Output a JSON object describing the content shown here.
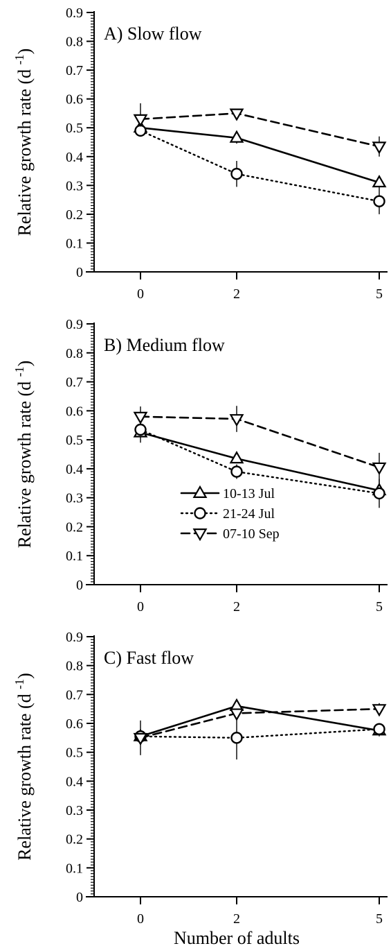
{
  "chart_data": [
    {
      "type": "line",
      "panel_label": "A) Slow flow",
      "title": "A) Slow flow",
      "ylabel": "Relative growth rate (d -1)",
      "xlabel": "",
      "x": [
        0,
        2,
        5
      ],
      "x_tick_labels": [
        "0",
        "2",
        "5"
      ],
      "ylim": [
        0,
        0.9
      ],
      "y_tick_labels": [
        "0",
        "0.1",
        "0.2",
        "0.3",
        "0.4",
        "0.5",
        "0.6",
        "0.7",
        "0.8",
        "0.9"
      ],
      "grid": false,
      "series": [
        {
          "name": "10-13 Jul",
          "marker": "triangle-up",
          "line": "solid",
          "values": [
            0.5,
            0.465,
            0.31
          ],
          "errors": [
            0.02,
            0.02,
            0.02
          ]
        },
        {
          "name": "21-24 Jul",
          "marker": "circle",
          "line": "dotted",
          "values": [
            0.49,
            0.34,
            0.245
          ],
          "errors": [
            0.02,
            0.045,
            0.045
          ]
        },
        {
          "name": "07-10 Sep",
          "marker": "triangle-down",
          "line": "dashed",
          "values": [
            0.53,
            0.55,
            0.435
          ],
          "errors": [
            0.055,
            0.015,
            0.035
          ]
        }
      ]
    },
    {
      "type": "line",
      "panel_label": "B) Medium flow",
      "title": "B) Medium flow",
      "ylabel": "Relative growth rate (d -1)",
      "xlabel": "",
      "x": [
        0,
        2,
        5
      ],
      "x_tick_labels": [
        "0",
        "2",
        "5"
      ],
      "ylim": [
        0,
        0.9
      ],
      "y_tick_labels": [
        "0",
        "0.1",
        "0.2",
        "0.3",
        "0.4",
        "0.5",
        "0.6",
        "0.7",
        "0.8",
        "0.9"
      ],
      "grid": false,
      "legend": {
        "placement": "center",
        "entries": [
          {
            "label": "10-13 Jul",
            "marker": "triangle-up",
            "line": "solid"
          },
          {
            "label": "21-24 Jul",
            "marker": "circle",
            "line": "dotted"
          },
          {
            "label": "07-10 Sep",
            "marker": "triangle-down",
            "line": "dashed"
          }
        ]
      },
      "series": [
        {
          "name": "10-13 Jul",
          "marker": "triangle-up",
          "line": "solid",
          "values": [
            0.525,
            0.435,
            0.325
          ],
          "errors": [
            0.035,
            0.015,
            0.03
          ]
        },
        {
          "name": "21-24 Jul",
          "marker": "circle",
          "line": "dotted",
          "values": [
            0.535,
            0.39,
            0.315
          ],
          "errors": [
            0.02,
            0.025,
            0.05
          ]
        },
        {
          "name": "07-10 Sep",
          "marker": "triangle-down",
          "line": "dashed",
          "values": [
            0.58,
            0.572,
            0.405
          ],
          "errors": [
            0.035,
            0.045,
            0.05
          ]
        }
      ]
    },
    {
      "type": "line",
      "panel_label": "C) Fast flow",
      "title": "C) Fast flow",
      "ylabel": "Relative growth rate (d -1)",
      "xlabel": "Number of adults",
      "x": [
        0,
        2,
        5
      ],
      "x_tick_labels": [
        "0",
        "2",
        "5"
      ],
      "ylim": [
        0,
        0.9
      ],
      "y_tick_labels": [
        "0",
        "0.1",
        "0.2",
        "0.3",
        "0.4",
        "0.5",
        "0.6",
        "0.7",
        "0.8",
        "0.9"
      ],
      "grid": false,
      "series": [
        {
          "name": "10-13 Jul",
          "marker": "triangle-up",
          "line": "solid",
          "values": [
            0.555,
            0.66,
            0.575
          ],
          "errors": [
            0.02,
            0.02,
            0.02
          ]
        },
        {
          "name": "21-24 Jul",
          "marker": "circle",
          "line": "dotted",
          "values": [
            0.555,
            0.55,
            0.58
          ],
          "errors": [
            0.02,
            0.075,
            0.02
          ]
        },
        {
          "name": "07-10 Sep",
          "marker": "triangle-down",
          "line": "dashed",
          "values": [
            0.55,
            0.635,
            0.65
          ],
          "errors": [
            0.06,
            0.02,
            0.02
          ]
        }
      ]
    }
  ]
}
